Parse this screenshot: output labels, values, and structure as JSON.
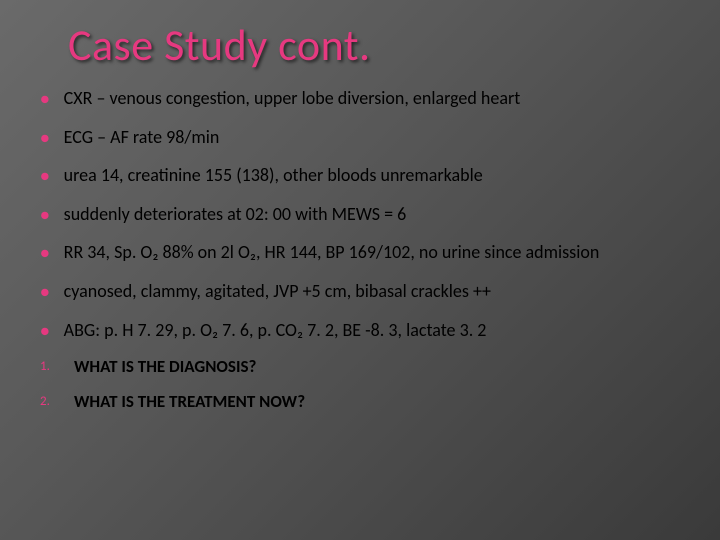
{
  "title": "Case Study cont.",
  "title_color": "#e63980",
  "bullet_color": "#e63980",
  "background_gradient": [
    "#6a6a6a",
    "#3a3a3a"
  ],
  "text_color": "#000000",
  "title_fontsize": 44,
  "body_fontsize": 18,
  "bullets": [
    "CXR – venous congestion, upper lobe diversion, enlarged heart",
    "ECG – AF rate 98/min",
    "urea 14, creatinine 155 (138), other bloods unremarkable",
    "suddenly deteriorates at 02: 00 with MEWS = 6",
    "RR 34, Sp. O₂ 88% on 2l O₂, HR 144, BP 169/102, no urine since admission",
    "cyanosed, clammy, agitated, JVP +5 cm, bibasal crackles ++",
    "ABG: p. H 7. 29, p. O₂ 7. 6, p. CO₂ 7. 2, BE -8. 3, lactate 3. 2"
  ],
  "numbered": [
    {
      "n": "1.",
      "text": "WHAT IS THE DIAGNOSIS?"
    },
    {
      "n": "2.",
      "text": "WHAT IS THE TREATMENT NOW?"
    }
  ]
}
